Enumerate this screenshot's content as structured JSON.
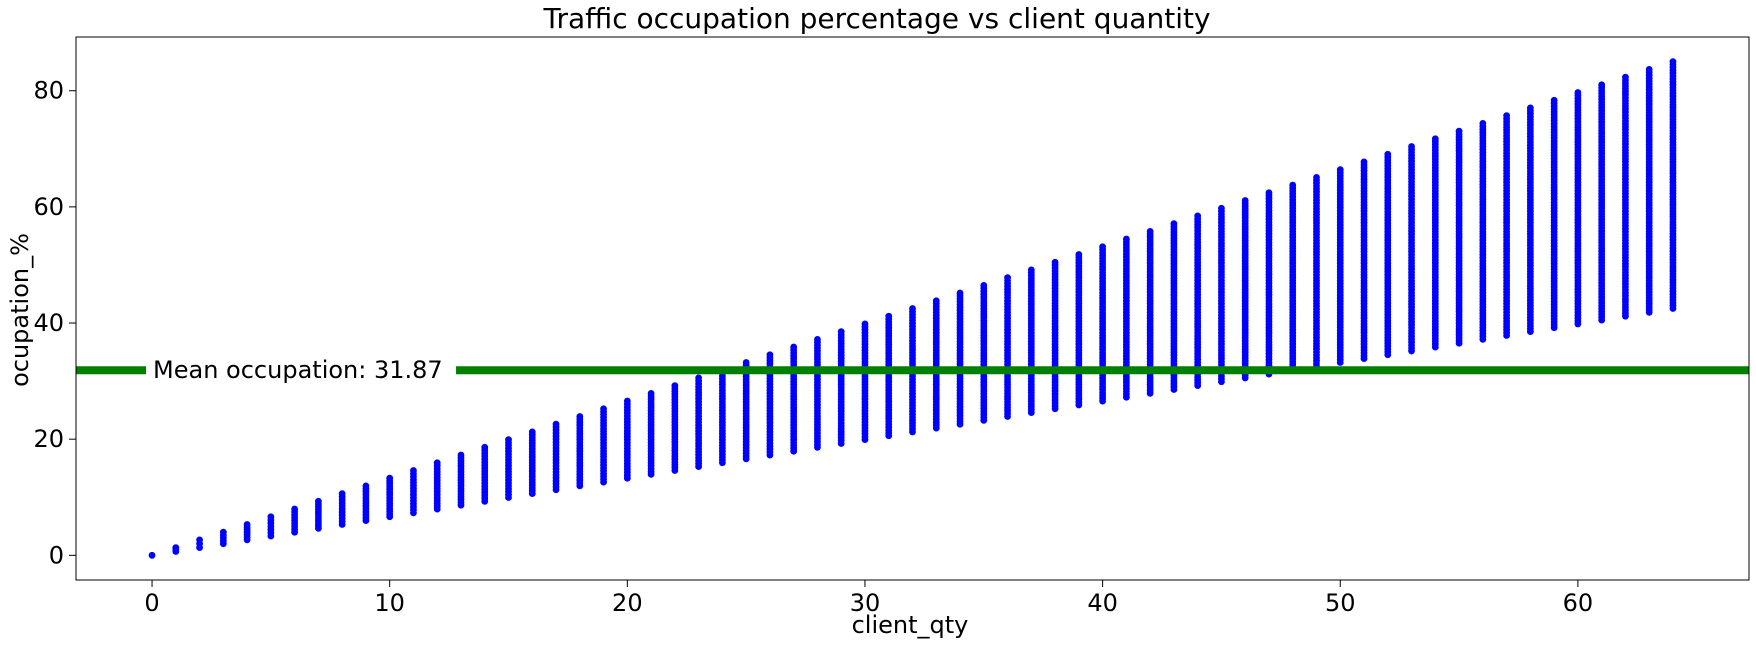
{
  "chart_data": {
    "type": "scatter",
    "title": "Traffic occupation percentage vs client quantity",
    "xlabel": "client_qty",
    "ylabel": "ocupation_%",
    "xlim": [
      -3.2,
      67.2
    ],
    "ylim": [
      -4.25,
      89.25
    ],
    "xticks": [
      0,
      10,
      20,
      30,
      40,
      50,
      60
    ],
    "yticks": [
      0,
      20,
      40,
      60,
      80
    ],
    "xtick_labels": [
      "0",
      "10",
      "20",
      "30",
      "40",
      "50",
      "60"
    ],
    "ytick_labels": [
      "0",
      "20",
      "40",
      "60",
      "80"
    ],
    "grid": false,
    "series": [
      {
        "color": "#0000ff",
        "marker": "circle",
        "x_range": [
          0,
          64
        ],
        "points_per_client_qty_range": {
          "min_y_at_x": "0.6640625 * x",
          "max_y_at_x": "1.328125 * x"
        }
      }
    ],
    "hline": {
      "y": 31.87,
      "color": "#008000",
      "label": "Mean occupation: 31.87"
    }
  }
}
